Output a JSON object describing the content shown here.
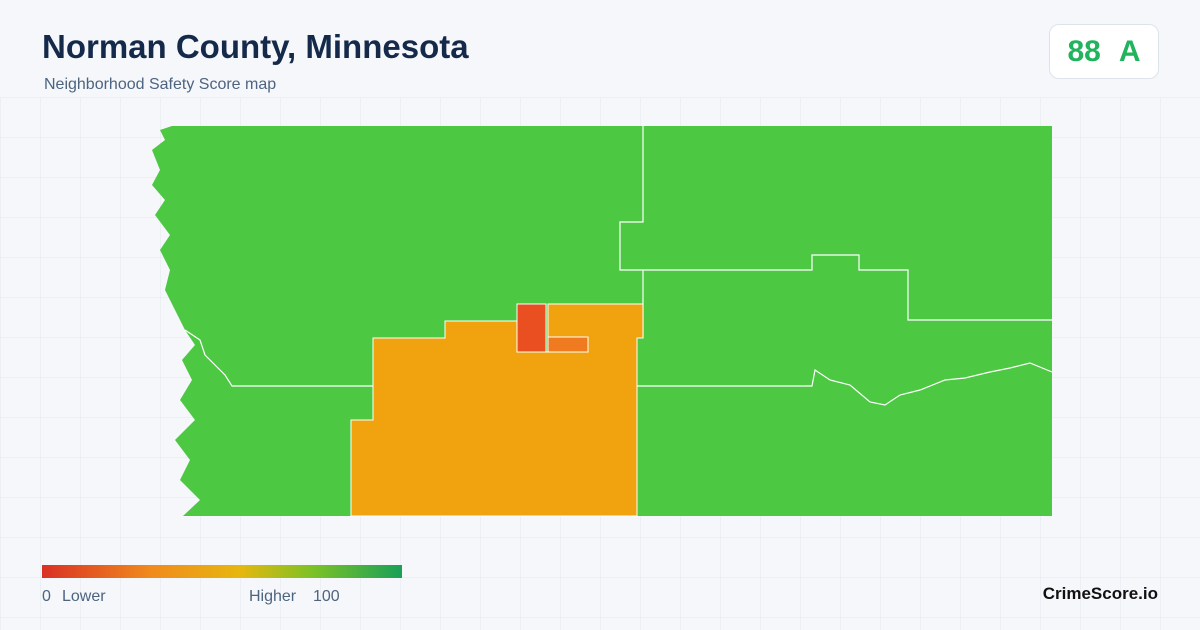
{
  "header": {
    "title": "Norman County, Minnesota",
    "subtitle": "Neighborhood Safety Score map"
  },
  "score": {
    "value": 88,
    "grade": "A"
  },
  "legend": {
    "min": 0,
    "min_label": "Lower",
    "max_label": "Higher",
    "max": 100
  },
  "brand": "CrimeScore.io"
}
